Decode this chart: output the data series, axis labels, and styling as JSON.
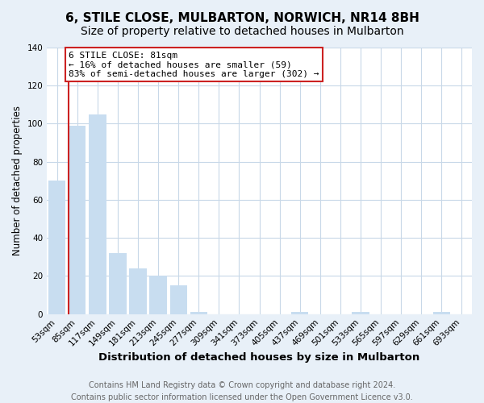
{
  "title": "6, STILE CLOSE, MULBARTON, NORWICH, NR14 8BH",
  "subtitle": "Size of property relative to detached houses in Mulbarton",
  "xlabel": "Distribution of detached houses by size in Mulbarton",
  "ylabel": "Number of detached properties",
  "categories": [
    "53sqm",
    "85sqm",
    "117sqm",
    "149sqm",
    "181sqm",
    "213sqm",
    "245sqm",
    "277sqm",
    "309sqm",
    "341sqm",
    "373sqm",
    "405sqm",
    "437sqm",
    "469sqm",
    "501sqm",
    "533sqm",
    "565sqm",
    "597sqm",
    "629sqm",
    "661sqm",
    "693sqm"
  ],
  "values": [
    70,
    99,
    105,
    32,
    24,
    20,
    15,
    1,
    0,
    0,
    0,
    0,
    1,
    0,
    0,
    1,
    0,
    0,
    0,
    1,
    0
  ],
  "bar_color": "#c8ddf0",
  "highlight_bar_index": 1,
  "red_line_bar_index": 0,
  "highlight_bar_edge_color": "#cc2222",
  "ylim": [
    0,
    140
  ],
  "yticks": [
    0,
    20,
    40,
    60,
    80,
    100,
    120,
    140
  ],
  "annotation_title": "6 STILE CLOSE: 81sqm",
  "annotation_line1": "← 16% of detached houses are smaller (59)",
  "annotation_line2": "83% of semi-detached houses are larger (302) →",
  "footer_line1": "Contains HM Land Registry data © Crown copyright and database right 2024.",
  "footer_line2": "Contains public sector information licensed under the Open Government Licence v3.0.",
  "background_color": "#e8f0f8",
  "plot_background": "#ffffff",
  "grid_color": "#c8d8e8",
  "title_fontsize": 11,
  "subtitle_fontsize": 10,
  "xlabel_fontsize": 9.5,
  "ylabel_fontsize": 8.5,
  "tick_fontsize": 7.5,
  "footer_fontsize": 7
}
